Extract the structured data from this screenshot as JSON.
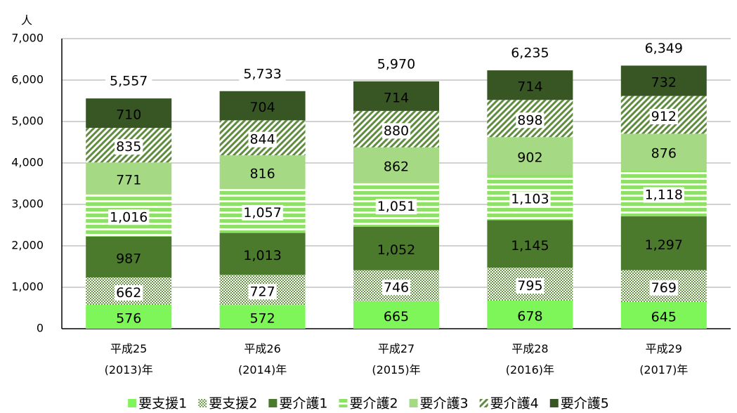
{
  "chart_data": {
    "type": "stacked_bar",
    "y_unit": "人",
    "categories": [
      "平成25\n(2013)年",
      "平成26\n(2014)年",
      "平成27\n(2015)年",
      "平成28\n(2016)年",
      "平成29\n(2017)年"
    ],
    "series": [
      {
        "name": "要支援1",
        "color": "#7ef558",
        "pattern": "solid",
        "label_color": "#000000",
        "values": [
          576,
          572,
          665,
          678,
          645
        ]
      },
      {
        "name": "要支援2",
        "color": "#6a9a48",
        "pattern": "dots",
        "label_color": "#000000",
        "values": [
          662,
          727,
          746,
          795,
          769
        ]
      },
      {
        "name": "要介護1",
        "color": "#4b7a2d",
        "pattern": "solid",
        "label_color": "#ffffff",
        "values": [
          987,
          1013,
          1052,
          1145,
          1297
        ],
        "value_labels": [
          "987",
          "1,013",
          "1,052",
          "1,145",
          "1,297"
        ]
      },
      {
        "name": "要介護2",
        "color": "#8fe067",
        "pattern": "hstripes",
        "label_color": "#000000",
        "values": [
          1016,
          1057,
          1051,
          1103,
          1118
        ],
        "value_labels": [
          "1,016",
          "1,057",
          "1,051",
          "1,103",
          "1,118"
        ]
      },
      {
        "name": "要介護3",
        "color": "#a6d984",
        "pattern": "solid",
        "label_color": "#000000",
        "values": [
          771,
          816,
          862,
          902,
          876
        ]
      },
      {
        "name": "要介護4",
        "color": "#5f8c3e",
        "pattern": "diag",
        "label_color": "#000000",
        "values": [
          835,
          844,
          880,
          898,
          912
        ]
      },
      {
        "name": "要介護5",
        "color": "#375623",
        "pattern": "solid",
        "label_color": "#ffffff",
        "values": [
          710,
          704,
          714,
          714,
          732
        ]
      }
    ],
    "totals": [
      5557,
      5733,
      5970,
      6235,
      6349
    ],
    "total_labels": [
      "5,557",
      "5,733",
      "5,970",
      "6,235",
      "6,349"
    ],
    "ylim": [
      0,
      7000
    ],
    "yticks": [
      0,
      {
        "value": 1000,
        "label": "1,000"
      },
      {
        "value": 2000,
        "label": "2,000"
      },
      {
        "value": 3000,
        "label": "3,000"
      },
      {
        "value": 4000,
        "label": "4,000"
      },
      {
        "value": 5000,
        "label": "5,000"
      },
      {
        "value": 6000,
        "label": "6,000"
      },
      {
        "value": 7000,
        "label": "7,000"
      }
    ],
    "grid": true,
    "legend": "bottom"
  }
}
